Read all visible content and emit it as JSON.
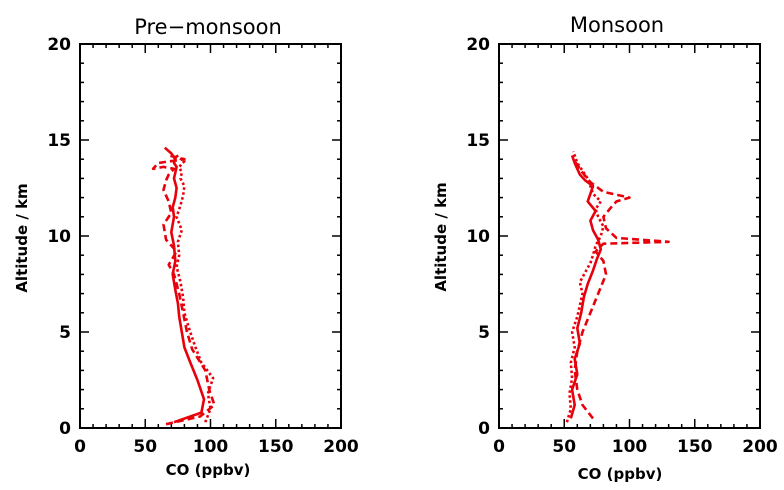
{
  "chart_data": [
    {
      "type": "line",
      "title": "Pre−monsoon",
      "xlabel": "CO (ppbv)",
      "ylabel": "Altitude / km",
      "xlim": [
        0,
        200
      ],
      "ylim": [
        0,
        20
      ],
      "xticks": [
        "0",
        "50",
        "100",
        "150",
        "200"
      ],
      "yticks": [
        "0",
        "5",
        "10",
        "15",
        "20"
      ],
      "grid": false,
      "color": "#e8000b",
      "series": [
        {
          "style": "solid",
          "x": [
            72,
            93,
            95,
            90,
            84,
            80,
            78,
            76,
            75,
            73,
            71,
            73,
            72,
            70,
            72,
            71,
            73,
            74,
            72,
            73,
            74,
            72,
            73,
            70,
            65
          ],
          "y": [
            0.3,
            0.8,
            1.5,
            2.5,
            3.5,
            4.2,
            5.0,
            5.8,
            6.5,
            7.2,
            8.0,
            8.7,
            9.5,
            10.2,
            11.0,
            11.5,
            12.0,
            12.5,
            13.0,
            13.3,
            13.6,
            13.8,
            14.0,
            14.3,
            14.6
          ]
        },
        {
          "style": "dashed",
          "x": [
            66,
            92,
            103,
            99,
            96,
            86,
            82,
            79,
            76,
            72,
            68,
            74,
            66,
            64,
            70,
            68,
            64,
            66,
            68,
            72,
            64,
            56,
            60,
            80,
            68
          ],
          "y": [
            0.2,
            0.6,
            1.2,
            2.0,
            3.0,
            4.1,
            5.0,
            6.0,
            7.0,
            8.0,
            8.5,
            9.2,
            9.8,
            10.6,
            11.2,
            11.8,
            12.4,
            12.9,
            13.2,
            13.5,
            13.6,
            13.5,
            13.8,
            14.0,
            14.2
          ]
        },
        {
          "style": "dotted",
          "x": [
            96,
            100,
            98,
            102,
            93,
            88,
            84,
            80,
            79,
            77,
            74,
            76,
            75,
            78,
            74,
            77,
            79,
            80,
            77,
            78,
            76,
            80,
            75,
            73
          ],
          "y": [
            0.3,
            1.0,
            1.8,
            2.6,
            3.4,
            4.3,
            5.1,
            6.0,
            6.8,
            7.6,
            8.4,
            9.0,
            9.7,
            10.3,
            11.0,
            11.6,
            12.1,
            12.6,
            13.0,
            13.3,
            13.6,
            13.9,
            14.1,
            14.3
          ]
        }
      ]
    },
    {
      "type": "line",
      "title": "Monsoon",
      "xlabel": "CO (ppbv)",
      "ylabel": "Altitude / km",
      "xlim": [
        0,
        200
      ],
      "ylim": [
        0,
        20
      ],
      "xticks": [
        "0",
        "50",
        "100",
        "150",
        "200"
      ],
      "yticks": [
        "0",
        "5",
        "10",
        "15",
        "20"
      ],
      "grid": false,
      "color": "#e8000b",
      "series": [
        {
          "style": "solid",
          "x": [
            55,
            58,
            56,
            60,
            58,
            62,
            60,
            63,
            65,
            68,
            72,
            75,
            78,
            76,
            72,
            70,
            74,
            68,
            70,
            72,
            66,
            62,
            60,
            58,
            56
          ],
          "y": [
            0.5,
            1.2,
            2.0,
            2.8,
            3.6,
            4.4,
            5.2,
            6.0,
            6.8,
            7.5,
            8.2,
            8.8,
            9.3,
            9.8,
            10.3,
            10.8,
            11.3,
            11.8,
            12.2,
            12.6,
            12.9,
            13.2,
            13.5,
            13.8,
            14.2
          ]
        },
        {
          "style": "dashed",
          "x": [
            72,
            64,
            60,
            58,
            60,
            64,
            70,
            76,
            82,
            80,
            74,
            80,
            130,
            90,
            82,
            80,
            86,
            90,
            100,
            80,
            70,
            64,
            58
          ],
          "y": [
            0.5,
            1.2,
            2.0,
            3.0,
            4.0,
            5.0,
            6.0,
            7.0,
            8.0,
            8.7,
            9.2,
            9.6,
            9.7,
            9.9,
            10.4,
            11.0,
            11.5,
            11.8,
            12.0,
            12.3,
            12.8,
            13.3,
            13.9
          ]
        },
        {
          "style": "dotted",
          "x": [
            52,
            55,
            54,
            56,
            55,
            58,
            56,
            60,
            62,
            64,
            62,
            66,
            70,
            72,
            74,
            78,
            80,
            76,
            74,
            78,
            72,
            70,
            68,
            64,
            60,
            57
          ],
          "y": [
            0.3,
            1.0,
            1.8,
            2.6,
            3.4,
            4.2,
            5.0,
            5.8,
            6.4,
            7.0,
            7.6,
            8.1,
            8.6,
            9.0,
            9.5,
            10.0,
            10.5,
            11.0,
            11.4,
            11.8,
            12.2,
            12.6,
            13.0,
            13.4,
            13.8,
            14.4
          ]
        }
      ]
    }
  ]
}
